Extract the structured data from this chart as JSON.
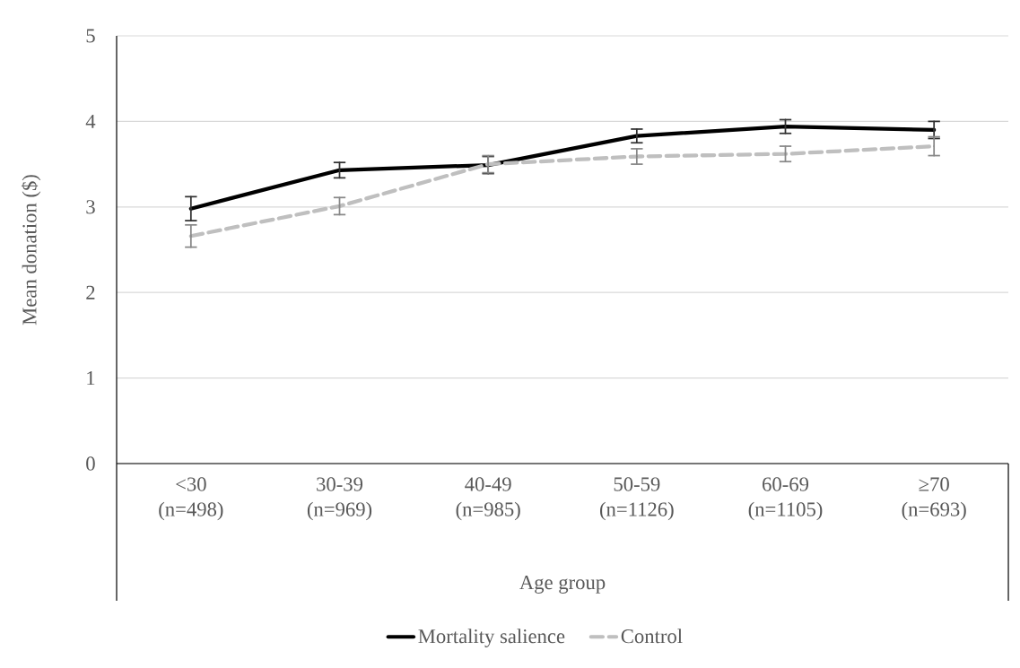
{
  "chart_data": {
    "type": "line",
    "xlabel": "Age group",
    "ylabel": "Mean donation ($)",
    "categories": [
      "<30 (n=498)",
      "30-39 (n=969)",
      "40-49 (n=985)",
      "50-59 (n=1126)",
      "60-69 (n=1105)",
      "≥70 (n=693)"
    ],
    "series": [
      {
        "name": "Mortality salience",
        "color": "#000000",
        "line_style": "solid",
        "values": [
          2.98,
          3.43,
          3.49,
          3.83,
          3.94,
          3.9
        ],
        "errors": [
          0.14,
          0.09,
          0.1,
          0.08,
          0.08,
          0.1
        ]
      },
      {
        "name": "Control",
        "color": "#bfbfbf",
        "line_style": "dashed",
        "values": [
          2.66,
          3.01,
          3.5,
          3.59,
          3.62,
          3.71
        ],
        "errors": [
          0.13,
          0.1,
          0.1,
          0.09,
          0.09,
          0.11
        ]
      }
    ],
    "ylim": [
      0,
      5
    ],
    "yticks": [
      0,
      1,
      2,
      3,
      4,
      5
    ],
    "grid": "y",
    "legend": "bottom",
    "marker": "none"
  }
}
